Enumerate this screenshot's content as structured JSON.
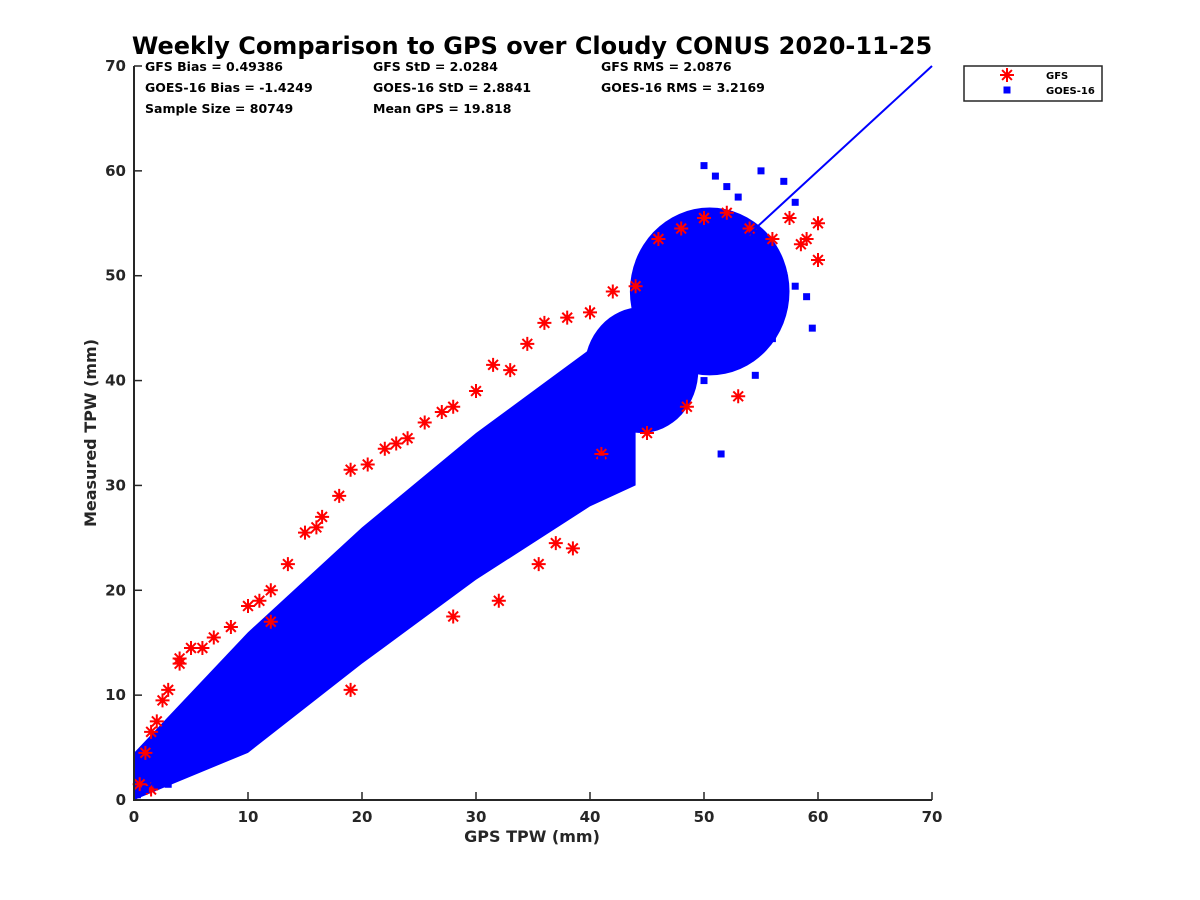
{
  "chart_data": {
    "type": "scatter",
    "title": "Weekly Comparison to GPS over Cloudy CONUS 2020-11-25",
    "xlabel": "GPS TPW (mm)",
    "ylabel": "Measured TPW (mm)",
    "xlim": [
      0,
      70
    ],
    "ylim": [
      0,
      70
    ],
    "xticks": [
      "0",
      "10",
      "20",
      "30",
      "40",
      "50",
      "60",
      "70"
    ],
    "yticks": [
      "0",
      "10",
      "20",
      "30",
      "40",
      "50",
      "60",
      "70"
    ],
    "grid": false,
    "legend_position": "top-right",
    "stats": [
      [
        "GFS Bias = 0.49386",
        "GFS StD = 2.0284",
        "GFS RMS = 2.0876"
      ],
      [
        "GOES-16 Bias = -1.4249",
        "GOES-16 StD = 2.8841",
        "GOES-16 RMS = 3.2169"
      ],
      [
        "Sample Size = 80749",
        "Mean GPS = 19.818",
        ""
      ]
    ],
    "reference_line": {
      "x": [
        0,
        70
      ],
      "y": [
        0,
        70
      ],
      "color": "#0000ff"
    },
    "series": [
      {
        "name": "GFS",
        "marker": "asterisk",
        "color": "#ff0000",
        "x": [
          0.5,
          1.0,
          1.5,
          2.0,
          2.5,
          3.0,
          4.0,
          5.0,
          6.0,
          7.0,
          8.5,
          10.0,
          11.0,
          12.0,
          13.5,
          15.0,
          16.5,
          18.0,
          19.0,
          20.5,
          22.0,
          23.0,
          24.0,
          25.5,
          27.0,
          28.0,
          30.0,
          31.5,
          33.0,
          34.5,
          36.0,
          38.0,
          40.0,
          42.0,
          44.0,
          46.0,
          48.0,
          50.0,
          52.0,
          54.0,
          56.0,
          57.5,
          59.0,
          60.0,
          35.5,
          38.5,
          32.0,
          28.0,
          19.0,
          4.0,
          1.5,
          12.0,
          16.0,
          37.0,
          41.0,
          45.0,
          48.5,
          53.0,
          58.5,
          60.0
        ],
        "y": [
          1.5,
          4.5,
          6.5,
          7.5,
          9.5,
          10.5,
          13.0,
          14.5,
          14.5,
          15.5,
          16.5,
          18.5,
          19.0,
          20.0,
          22.5,
          25.5,
          27.0,
          29.0,
          31.5,
          32.0,
          33.5,
          34.0,
          34.5,
          36.0,
          37.0,
          37.5,
          39.0,
          41.5,
          41.0,
          43.5,
          45.5,
          46.0,
          46.5,
          48.5,
          49.0,
          53.5,
          54.5,
          55.5,
          56.0,
          54.5,
          53.5,
          55.5,
          53.5,
          51.5,
          22.5,
          24.0,
          19.0,
          17.5,
          10.5,
          13.5,
          1.0,
          17.0,
          26.0,
          24.5,
          33.0,
          35.0,
          37.5,
          38.5,
          53.0,
          55.0
        ]
      },
      {
        "name": "GOES-16",
        "marker": "square",
        "color": "#0000ff",
        "x": [
          0.3,
          1.0,
          2.0,
          3.0,
          4.0,
          5.0,
          6.0,
          7.0,
          8.0,
          9.0,
          10.0,
          11.0,
          12.0,
          13.0,
          14.0,
          15.0,
          16.0,
          17.0,
          18.0,
          19.0,
          20.0,
          21.0,
          22.0,
          23.0,
          24.0,
          25.0,
          26.0,
          27.0,
          28.0,
          29.0,
          30.0,
          31.0,
          32.0,
          33.0,
          34.0,
          35.0,
          36.0,
          37.0,
          38.0,
          39.0,
          40.0,
          41.0,
          42.0,
          43.0,
          44.0,
          45.0,
          46.0,
          47.0,
          48.0,
          49.0,
          50.0,
          51.0,
          52.0,
          53.0,
          54.0,
          55.0,
          56.0,
          57.0,
          58.0,
          59.0,
          59.5,
          50.0,
          51.0,
          52.0,
          53.0,
          55.0,
          57.0,
          58.0,
          50.0,
          51.5,
          54.5,
          43.0,
          41.0,
          39.0,
          44.0,
          46.5,
          47.5,
          52.0,
          54.0,
          56.0,
          45.0,
          48.0,
          30.0,
          26.0,
          22.0,
          18.0,
          14.0,
          10.0,
          6.0,
          3.0
        ],
        "y": [
          0.5,
          1.0,
          1.5,
          2.5,
          3.5,
          4.0,
          5.0,
          6.0,
          7.0,
          8.0,
          9.0,
          10.0,
          11.0,
          12.0,
          13.0,
          14.0,
          15.0,
          16.0,
          17.0,
          18.0,
          19.0,
          20.0,
          21.0,
          22.0,
          23.0,
          24.0,
          25.0,
          26.0,
          27.0,
          28.0,
          29.0,
          30.0,
          31.0,
          32.0,
          33.0,
          34.0,
          35.0,
          36.0,
          37.0,
          38.0,
          39.0,
          40.0,
          41.0,
          42.0,
          43.0,
          44.0,
          45.0,
          46.0,
          47.0,
          48.0,
          49.0,
          50.0,
          51.0,
          52.0,
          53.0,
          52.0,
          51.0,
          50.0,
          49.0,
          48.0,
          45.0,
          60.5,
          59.5,
          58.5,
          57.5,
          60.0,
          59.0,
          57.0,
          40.0,
          33.0,
          40.5,
          35.0,
          32.5,
          30.5,
          38.5,
          36.5,
          38.0,
          44.0,
          46.0,
          44.0,
          47.5,
          51.5,
          24.5,
          20.0,
          16.0,
          12.5,
          9.0,
          6.0,
          3.5,
          1.5
        ]
      }
    ]
  }
}
